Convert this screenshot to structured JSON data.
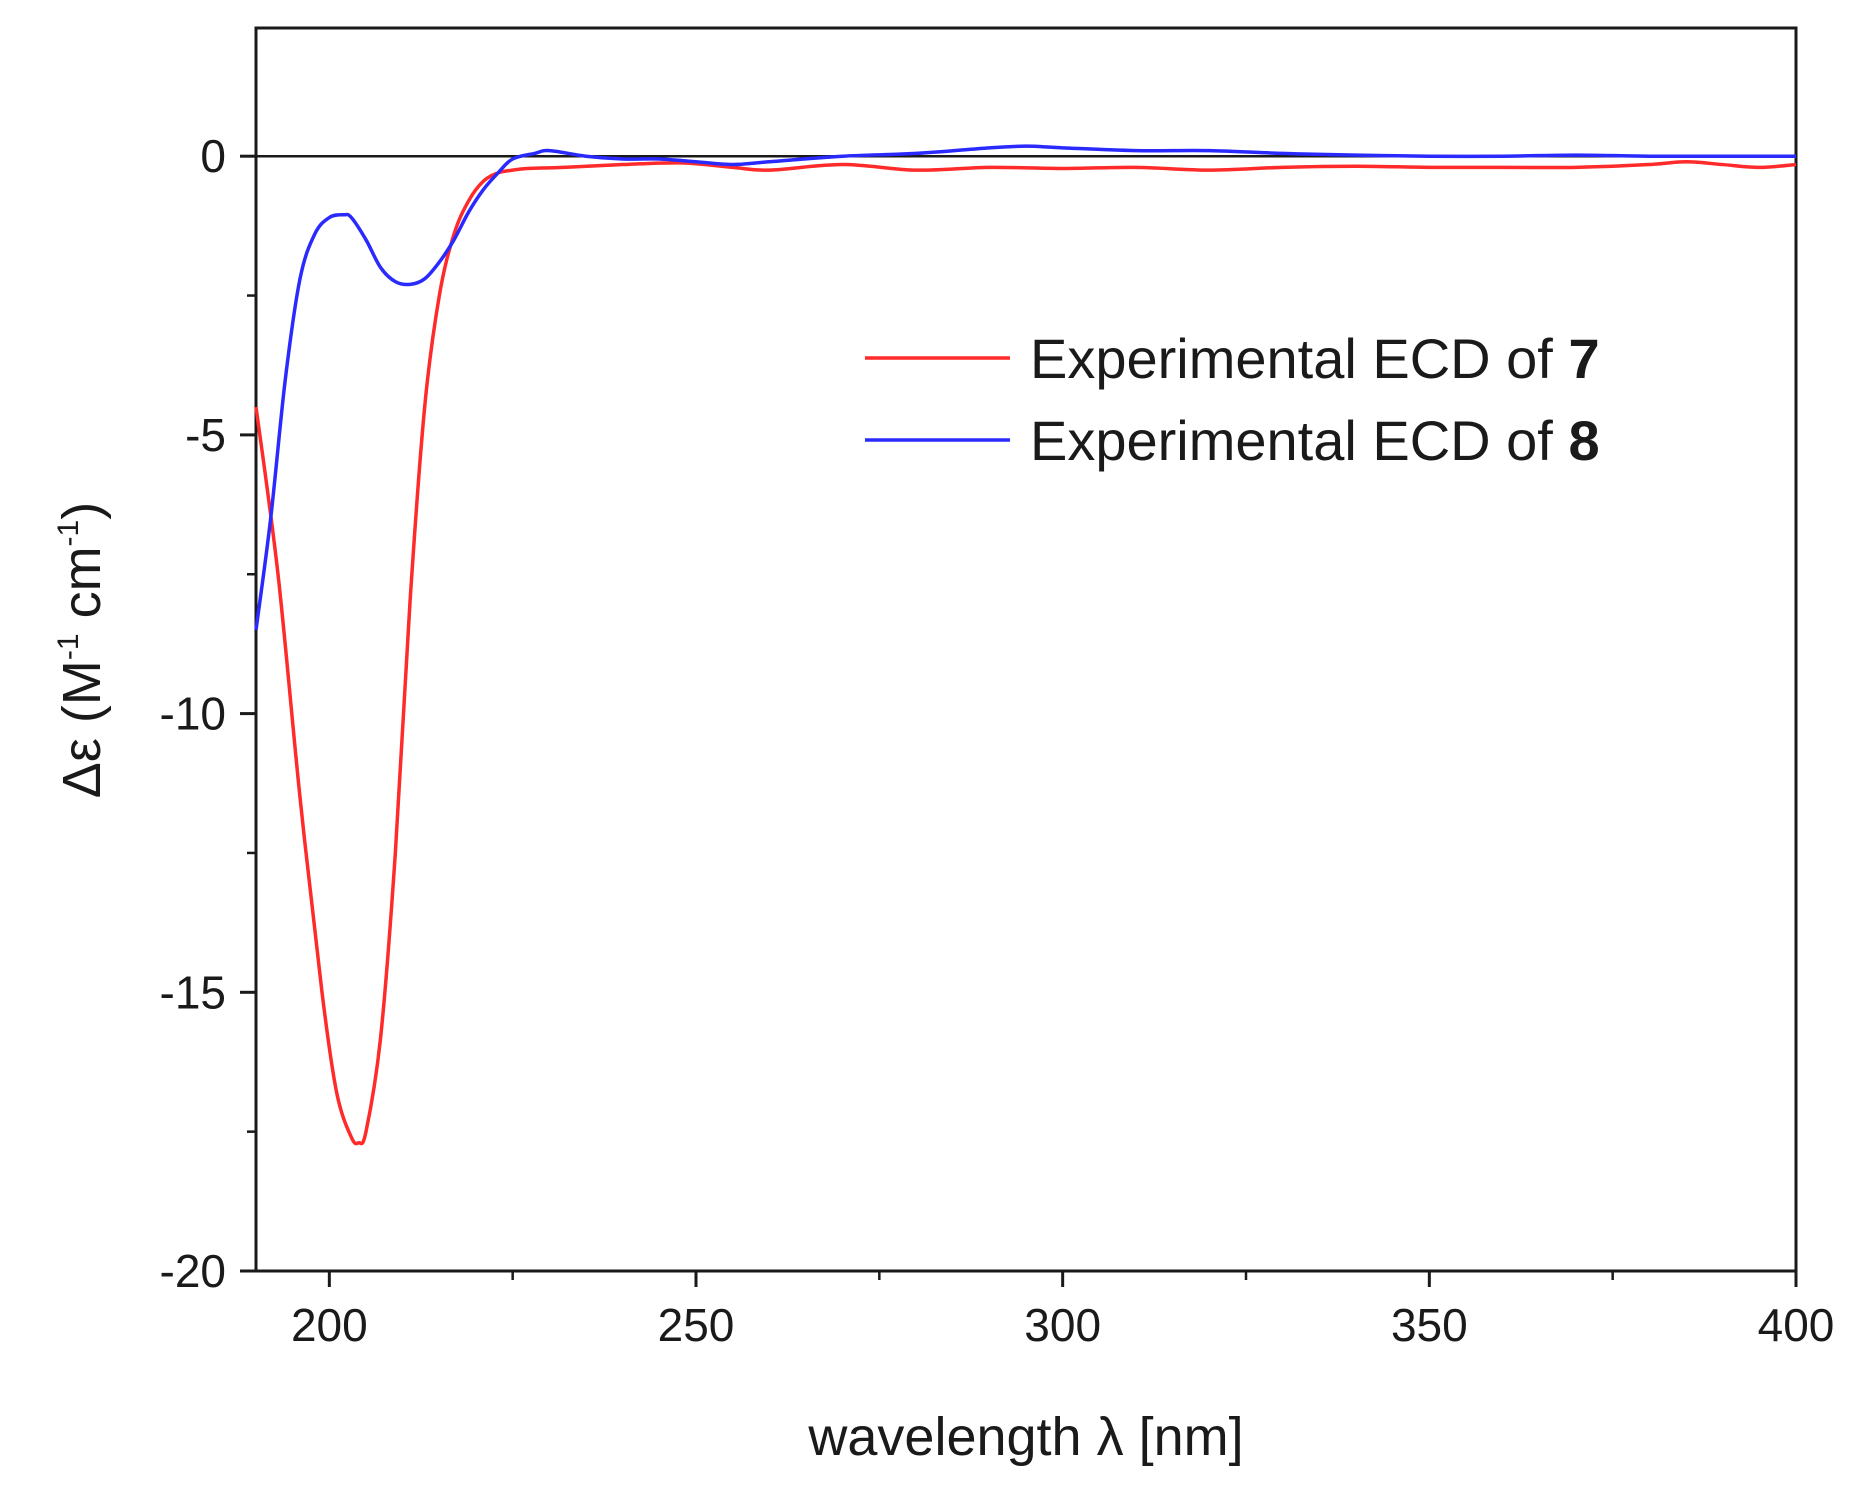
{
  "chart_data": {
    "type": "line",
    "title": "",
    "xlabel": "wavelength λ [nm]",
    "ylabel": {
      "prefix": "Δε (M",
      "sup1": "-1",
      "middle": " cm",
      "sup2": "-1",
      "suffix": ")"
    },
    "xlim": [
      190,
      400
    ],
    "ylim": [
      -20,
      2.3
    ],
    "x_ticks": [
      200,
      250,
      300,
      350,
      400
    ],
    "x_tick_labels": [
      "200",
      "250",
      "300",
      "350",
      "400"
    ],
    "x_minor_ticks": [
      225,
      275,
      325,
      375
    ],
    "y_ticks": [
      0,
      -5,
      -10,
      -15,
      -20
    ],
    "y_tick_labels": [
      "0",
      "-5",
      "-10",
      "-15",
      "-20"
    ],
    "y_minor_ticks": [
      -2.5,
      -7.5,
      -12.5,
      -17.5
    ],
    "zero_line": 0,
    "legend_position": "upper-right",
    "series": [
      {
        "name": "Experimental ECD of 7",
        "legend_text": "Experimental ECD of ",
        "legend_number": "7",
        "color": "#ff2a2a",
        "x": [
          190,
          193,
          196,
          199,
          201,
          203,
          204,
          205,
          207,
          209,
          211,
          213,
          215,
          217,
          219,
          221,
          223,
          225,
          227,
          232,
          240,
          248,
          255,
          260,
          270,
          280,
          290,
          300,
          310,
          320,
          330,
          340,
          350,
          360,
          370,
          380,
          385,
          390,
          395,
          400
        ],
        "y": [
          -4.5,
          -7.5,
          -11.5,
          -15.0,
          -16.8,
          -17.6,
          -17.7,
          -17.5,
          -15.8,
          -12.5,
          -8.0,
          -4.5,
          -2.5,
          -1.4,
          -0.8,
          -0.45,
          -0.3,
          -0.25,
          -0.22,
          -0.2,
          -0.15,
          -0.12,
          -0.2,
          -0.25,
          -0.15,
          -0.25,
          -0.2,
          -0.22,
          -0.2,
          -0.25,
          -0.2,
          -0.18,
          -0.2,
          -0.2,
          -0.2,
          -0.15,
          -0.1,
          -0.15,
          -0.2,
          -0.15
        ]
      },
      {
        "name": "Experimental ECD of 8",
        "legend_text": "Experimental ECD of ",
        "legend_number": "8",
        "color": "#2a2aff",
        "x": [
          190,
          192,
          194,
          196,
          198,
          200,
          202,
          203,
          205,
          207,
          209,
          211,
          213,
          215,
          217,
          219,
          221,
          223,
          225,
          228,
          230,
          235,
          240,
          245,
          250,
          255,
          260,
          270,
          280,
          290,
          295,
          300,
          310,
          320,
          330,
          340,
          350,
          360,
          370,
          380,
          390,
          400
        ],
        "y": [
          -8.5,
          -6.5,
          -4.0,
          -2.2,
          -1.4,
          -1.1,
          -1.05,
          -1.1,
          -1.5,
          -2.0,
          -2.25,
          -2.3,
          -2.2,
          -1.9,
          -1.5,
          -1.0,
          -0.6,
          -0.3,
          -0.05,
          0.05,
          0.1,
          0.0,
          -0.05,
          -0.05,
          -0.1,
          -0.15,
          -0.1,
          0.0,
          0.05,
          0.15,
          0.18,
          0.15,
          0.1,
          0.1,
          0.05,
          0.02,
          0.0,
          0.0,
          0.02,
          0.0,
          0.0,
          0.0
        ]
      }
    ]
  }
}
